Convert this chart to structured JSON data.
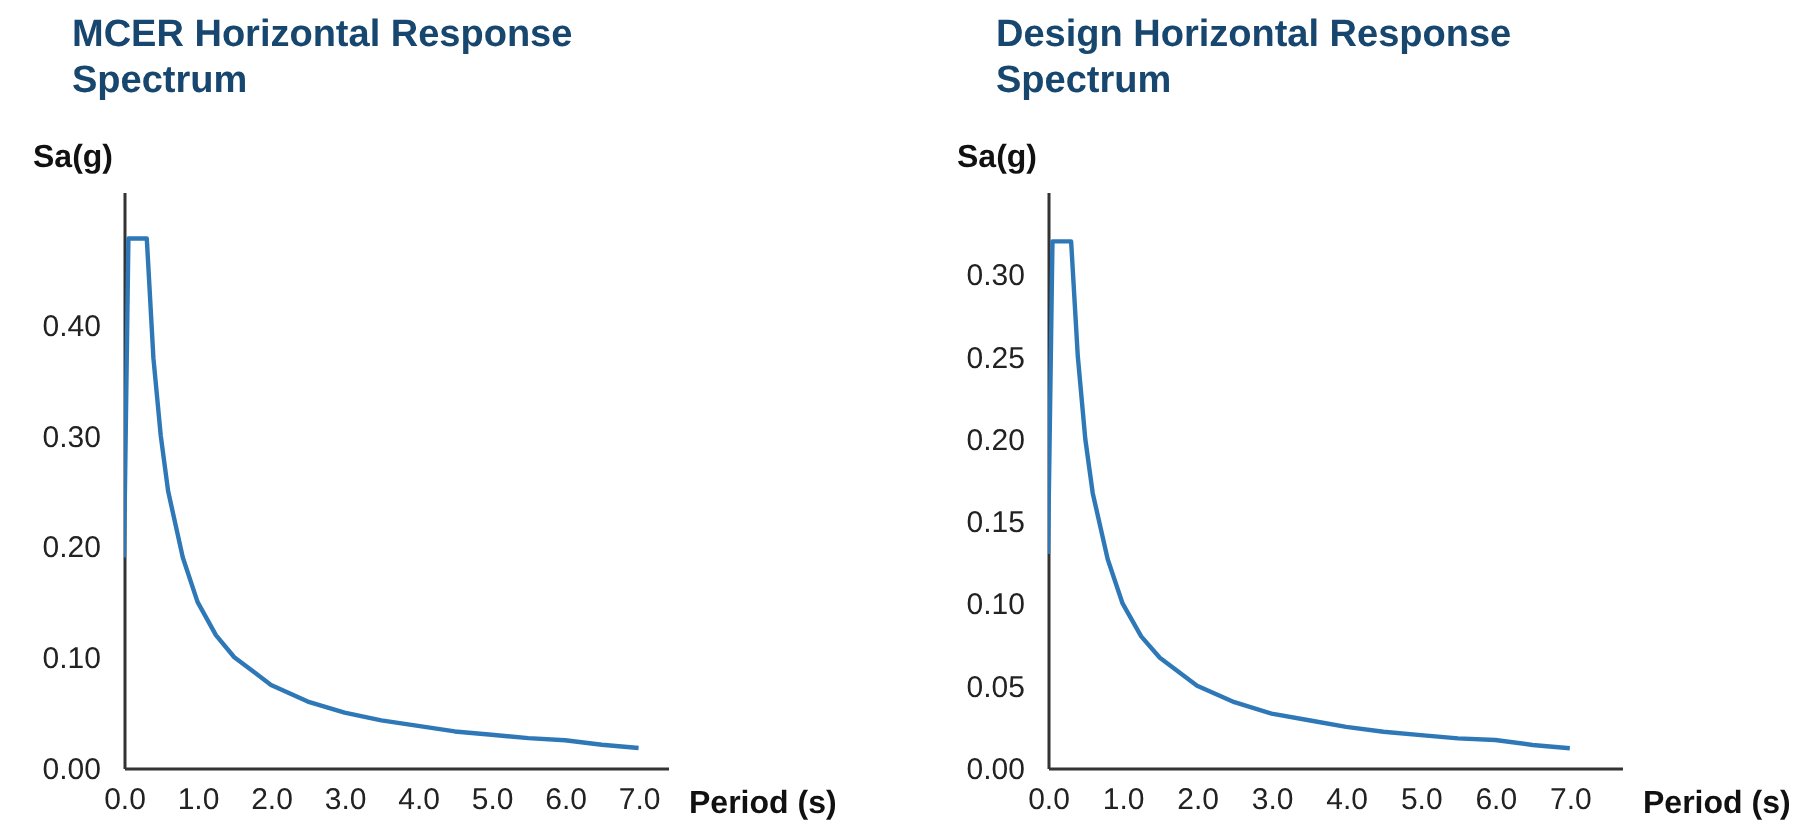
{
  "chart_data": [
    {
      "type": "line",
      "title": "MCER Horizontal Response Spectrum",
      "xlabel": "Period (s)",
      "ylabel": "Sa(g)",
      "color": "#2e78b7",
      "x": [
        0,
        0.06,
        0.31,
        0.4,
        0.5,
        0.6,
        0.8,
        1.0,
        1.25,
        1.5,
        2.0,
        2.5,
        3.0,
        3.5,
        4.0,
        4.5,
        5.0,
        5.5,
        6.0,
        6.5,
        7.0
      ],
      "values": [
        0.19,
        0.478,
        0.478,
        0.37,
        0.3,
        0.25,
        0.19,
        0.15,
        0.12,
        0.1,
        0.075,
        0.06,
        0.05,
        0.043,
        0.038,
        0.033,
        0.03,
        0.027,
        0.025,
        0.021,
        0.018
      ],
      "xlim": [
        0,
        7.4
      ],
      "ylim": [
        0,
        0.52
      ],
      "xticks": [
        {
          "value": 0,
          "label": "0.0"
        },
        {
          "value": 1,
          "label": "1.0"
        },
        {
          "value": 2,
          "label": "2.0"
        },
        {
          "value": 3,
          "label": "3.0"
        },
        {
          "value": 4,
          "label": "4.0"
        },
        {
          "value": 5,
          "label": "5.0"
        },
        {
          "value": 6,
          "label": "6.0"
        },
        {
          "value": 7,
          "label": "7.0"
        }
      ],
      "yticks": [
        {
          "value": 0,
          "label": "0.00"
        },
        {
          "value": 0.1,
          "label": "0.10"
        },
        {
          "value": 0.2,
          "label": "0.20"
        },
        {
          "value": 0.3,
          "label": "0.30"
        },
        {
          "value": 0.4,
          "label": "0.40"
        }
      ],
      "grid": false,
      "marker": "none",
      "line_style": "solid"
    },
    {
      "type": "line",
      "title": "Design Horizontal Response Spectrum",
      "xlabel": "Period (s)",
      "ylabel": "Sa(g)",
      "color": "#2e78b7",
      "x": [
        0,
        0.06,
        0.31,
        0.4,
        0.5,
        0.6,
        0.8,
        1.0,
        1.25,
        1.5,
        2.0,
        2.5,
        3.0,
        3.5,
        4.0,
        4.5,
        5.0,
        5.5,
        6.0,
        6.5,
        7.0
      ],
      "values": [
        0.13,
        0.32,
        0.32,
        0.25,
        0.2,
        0.167,
        0.127,
        0.1,
        0.08,
        0.067,
        0.05,
        0.04,
        0.033,
        0.029,
        0.025,
        0.022,
        0.02,
        0.018,
        0.017,
        0.014,
        0.012
      ],
      "xlim": [
        0,
        7.7
      ],
      "ylim": [
        0,
        0.35
      ],
      "xticks": [
        {
          "value": 0,
          "label": "0.0"
        },
        {
          "value": 1,
          "label": "1.0"
        },
        {
          "value": 2,
          "label": "2.0"
        },
        {
          "value": 3,
          "label": "3.0"
        },
        {
          "value": 4,
          "label": "4.0"
        },
        {
          "value": 5,
          "label": "5.0"
        },
        {
          "value": 6,
          "label": "6.0"
        },
        {
          "value": 7,
          "label": "7.0"
        }
      ],
      "yticks": [
        {
          "value": 0,
          "label": "0.00"
        },
        {
          "value": 0.05,
          "label": "0.05"
        },
        {
          "value": 0.1,
          "label": "0.10"
        },
        {
          "value": 0.15,
          "label": "0.15"
        },
        {
          "value": 0.2,
          "label": "0.20"
        },
        {
          "value": 0.25,
          "label": "0.25"
        },
        {
          "value": 0.3,
          "label": "0.30"
        }
      ],
      "grid": false,
      "marker": "none",
      "line_style": "solid"
    }
  ]
}
